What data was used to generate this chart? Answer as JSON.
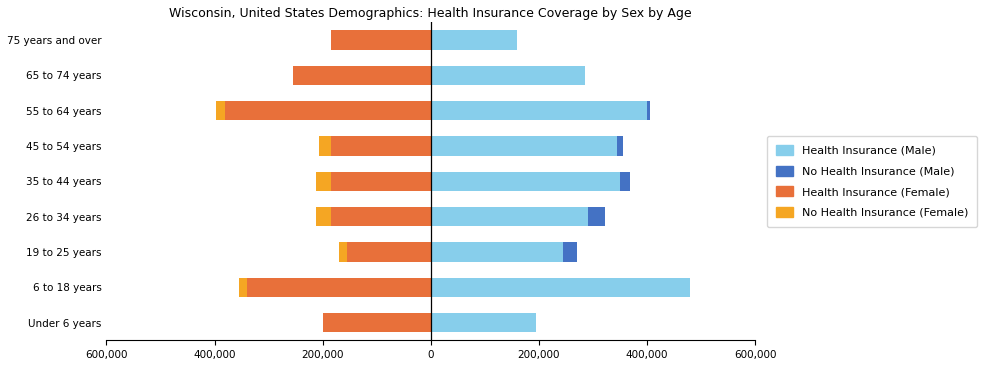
{
  "title": "Wisconsin, United States Demographics: Health Insurance Coverage by Sex by Age",
  "age_groups": [
    "Under 6 years",
    "6 to 18 years",
    "19 to 25 years",
    "26 to 34 years",
    "35 to 44 years",
    "45 to 54 years",
    "55 to 64 years",
    "65 to 74 years",
    "75 years and over"
  ],
  "male_insured": [
    195000,
    480000,
    245000,
    290000,
    350000,
    345000,
    400000,
    285000,
    160000
  ],
  "male_uninsured": [
    0,
    0,
    25000,
    32000,
    18000,
    10000,
    5000,
    0,
    0
  ],
  "female_insured": [
    200000,
    340000,
    155000,
    185000,
    185000,
    185000,
    380000,
    255000,
    185000
  ],
  "female_uninsured": [
    0,
    15000,
    15000,
    28000,
    28000,
    22000,
    18000,
    0,
    0
  ],
  "color_male_insured": "#87CEEB",
  "color_male_uninsured": "#4472C4",
  "color_female_insured": "#E8703A",
  "color_female_uninsured": "#F5A623",
  "xlim": 600000,
  "xtick_step": 200000,
  "legend_labels": [
    "Health Insurance (Male)",
    "No Health Insurance (Male)",
    "Health Insurance (Female)",
    "No Health Insurance (Female)"
  ]
}
